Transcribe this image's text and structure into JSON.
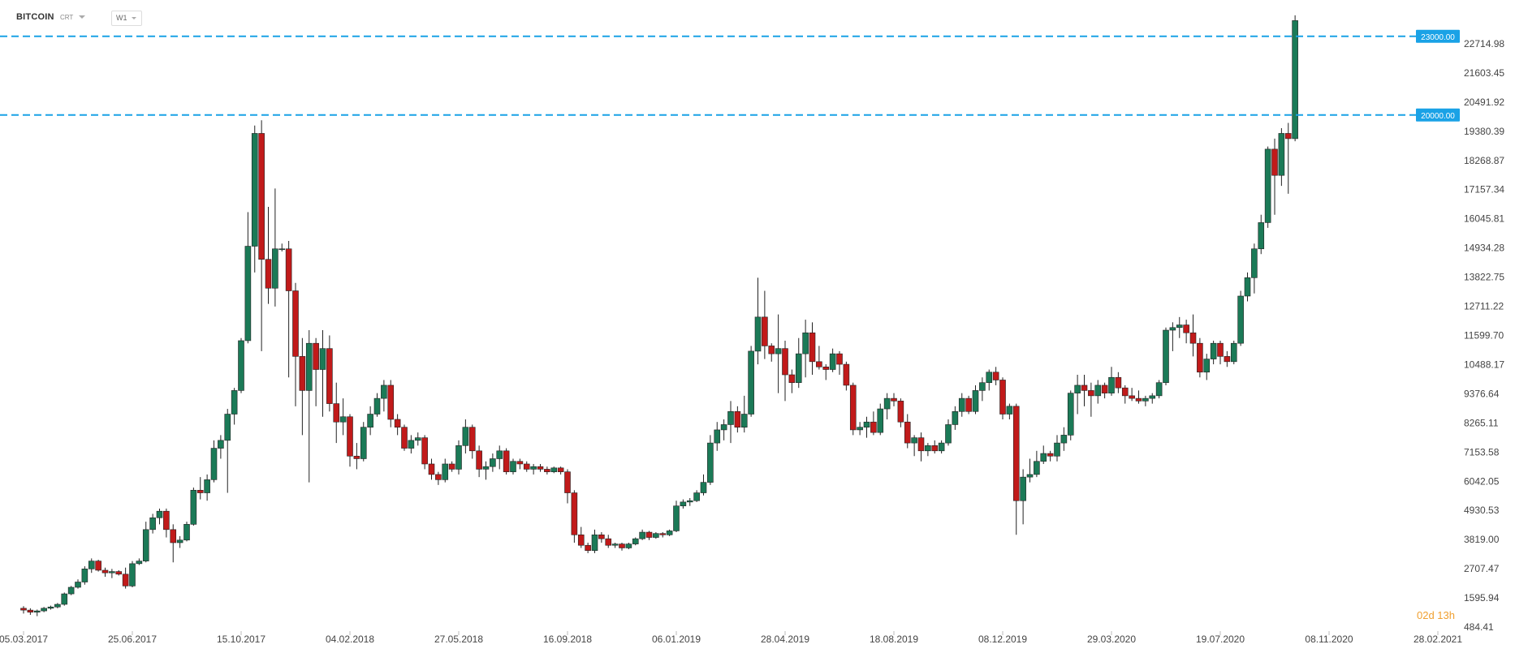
{
  "header": {
    "symbol": "BITCOIN",
    "subtype": "CRT",
    "timeframe": "W1"
  },
  "countdown": "02d 13h",
  "colors": {
    "up": "#1b7a57",
    "down": "#c11a1a",
    "level_line": "#1aa2e6",
    "level_badge": "#1aa2e6",
    "background": "#ffffff"
  },
  "chart_data": {
    "type": "candlestick",
    "title": "",
    "ylim": [
      484.41,
      24400
    ],
    "y_ticks": [
      "22714.98",
      "21603.45",
      "20491.92",
      "19380.39",
      "18268.87",
      "17157.34",
      "16045.81",
      "14934.28",
      "13822.75",
      "12711.22",
      "11599.70",
      "10488.17",
      "9376.64",
      "8265.11",
      "7153.58",
      "6042.05",
      "4930.53",
      "3819.00",
      "2707.47",
      "1595.94",
      "484.41"
    ],
    "x_ticks": [
      "05.03.2017",
      "25.06.2017",
      "15.10.2017",
      "04.02.2018",
      "27.05.2018",
      "16.09.2018",
      "06.01.2019",
      "28.04.2019",
      "18.08.2019",
      "08.12.2019",
      "29.03.2020",
      "19.07.2020",
      "08.11.2020",
      "28.02.2021"
    ],
    "x_start": "05.03.2017",
    "x_end": "28.02.2021",
    "levels": [
      {
        "value": 23000,
        "label": "23000.00"
      },
      {
        "value": 20000,
        "label": "20000.00"
      }
    ],
    "candles": [
      [
        1200,
        1280,
        1000,
        1130
      ],
      [
        1130,
        1200,
        950,
        1050
      ],
      [
        1050,
        1150,
        900,
        1100
      ],
      [
        1100,
        1250,
        1050,
        1200
      ],
      [
        1200,
        1300,
        1150,
        1250
      ],
      [
        1250,
        1400,
        1200,
        1350
      ],
      [
        1350,
        1800,
        1300,
        1750
      ],
      [
        1750,
        2050,
        1700,
        2000
      ],
      [
        2000,
        2300,
        1950,
        2200
      ],
      [
        2200,
        2800,
        2100,
        2700
      ],
      [
        2700,
        3100,
        2550,
        3000
      ],
      [
        3000,
        3050,
        2600,
        2650
      ],
      [
        2650,
        2750,
        2400,
        2550
      ],
      [
        2550,
        2700,
        2350,
        2600
      ],
      [
        2600,
        2650,
        2450,
        2500
      ],
      [
        2500,
        2750,
        1950,
        2050
      ],
      [
        2050,
        3000,
        2000,
        2900
      ],
      [
        2900,
        3100,
        2850,
        3000
      ],
      [
        3000,
        4500,
        2950,
        4200
      ],
      [
        4200,
        4800,
        4050,
        4650
      ],
      [
        4650,
        5000,
        4400,
        4900
      ],
      [
        4900,
        5000,
        3900,
        4200
      ],
      [
        4200,
        4400,
        2950,
        3700
      ],
      [
        3700,
        3950,
        3500,
        3800
      ],
      [
        3800,
        4500,
        3750,
        4400
      ],
      [
        4400,
        5800,
        4350,
        5700
      ],
      [
        5700,
        6200,
        5350,
        5600
      ],
      [
        5600,
        6300,
        5300,
        6100
      ],
      [
        6100,
        7600,
        6000,
        7300
      ],
      [
        7300,
        7800,
        6900,
        7600
      ],
      [
        7600,
        8800,
        5600,
        8600
      ],
      [
        8600,
        9600,
        8200,
        9500
      ],
      [
        9500,
        11500,
        9400,
        11400
      ],
      [
        11400,
        16300,
        11300,
        15000
      ],
      [
        15000,
        19600,
        14000,
        19300
      ],
      [
        19300,
        19800,
        11000,
        14500
      ],
      [
        14500,
        16500,
        12800,
        13400
      ],
      [
        13400,
        17200,
        12700,
        14900
      ],
      [
        14900,
        15100,
        14800,
        14900
      ],
      [
        14900,
        15200,
        10000,
        13300
      ],
      [
        13300,
        13600,
        8900,
        10800
      ],
      [
        10800,
        11500,
        7800,
        9500
      ],
      [
        9500,
        11800,
        6000,
        11300
      ],
      [
        11300,
        11500,
        8900,
        10300
      ],
      [
        10300,
        11800,
        8500,
        11100
      ],
      [
        11100,
        11600,
        8700,
        9000
      ],
      [
        9000,
        9800,
        7500,
        8300
      ],
      [
        8300,
        9200,
        7800,
        8500
      ],
      [
        8500,
        8600,
        6600,
        7000
      ],
      [
        7000,
        7500,
        6500,
        6900
      ],
      [
        6900,
        8300,
        6800,
        8100
      ],
      [
        8100,
        8900,
        7800,
        8600
      ],
      [
        8600,
        9400,
        8500,
        9200
      ],
      [
        9200,
        9900,
        8700,
        9700
      ],
      [
        9700,
        9900,
        8100,
        8400
      ],
      [
        8400,
        8600,
        7800,
        8100
      ],
      [
        8100,
        8200,
        7200,
        7300
      ],
      [
        7300,
        7800,
        7100,
        7600
      ],
      [
        7600,
        7900,
        7400,
        7700
      ],
      [
        7700,
        7800,
        6500,
        6700
      ],
      [
        6700,
        6900,
        6100,
        6300
      ],
      [
        6300,
        6400,
        5900,
        6100
      ],
      [
        6100,
        6900,
        6000,
        6700
      ],
      [
        6700,
        6800,
        6400,
        6500
      ],
      [
        6500,
        7600,
        6300,
        7400
      ],
      [
        7400,
        8400,
        7100,
        8100
      ],
      [
        8100,
        8200,
        6900,
        7200
      ],
      [
        7200,
        7400,
        6200,
        6500
      ],
      [
        6500,
        6800,
        6100,
        6600
      ],
      [
        6600,
        7100,
        6400,
        6900
      ],
      [
        6900,
        7400,
        6500,
        7200
      ],
      [
        7200,
        7300,
        6300,
        6400
      ],
      [
        6400,
        6900,
        6300,
        6800
      ],
      [
        6800,
        6900,
        6500,
        6700
      ],
      [
        6700,
        6800,
        6400,
        6500
      ],
      [
        6500,
        6700,
        6300,
        6600
      ],
      [
        6600,
        6700,
        6400,
        6500
      ],
      [
        6500,
        6600,
        6300,
        6400
      ],
      [
        6400,
        6600,
        6350,
        6550
      ],
      [
        6550,
        6600,
        6300,
        6400
      ],
      [
        6400,
        6500,
        5200,
        5600
      ],
      [
        5600,
        5700,
        3700,
        4000
      ],
      [
        4000,
        4300,
        3500,
        3600
      ],
      [
        3600,
        3700,
        3300,
        3400
      ],
      [
        3400,
        4200,
        3300,
        4000
      ],
      [
        4000,
        4100,
        3700,
        3850
      ],
      [
        3850,
        4000,
        3500,
        3600
      ],
      [
        3600,
        3700,
        3500,
        3650
      ],
      [
        3650,
        3700,
        3400,
        3500
      ],
      [
        3500,
        3700,
        3450,
        3650
      ],
      [
        3650,
        3900,
        3600,
        3850
      ],
      [
        3850,
        4200,
        3800,
        4100
      ],
      [
        4100,
        4150,
        3800,
        3900
      ],
      [
        3900,
        4100,
        3850,
        4050
      ],
      [
        4050,
        4100,
        3900,
        4000
      ],
      [
        4000,
        4200,
        3950,
        4150
      ],
      [
        4150,
        5300,
        4100,
        5100
      ],
      [
        5100,
        5350,
        5000,
        5250
      ],
      [
        5250,
        5400,
        5100,
        5300
      ],
      [
        5300,
        5700,
        5250,
        5600
      ],
      [
        5600,
        6300,
        5500,
        6000
      ],
      [
        6000,
        7800,
        5900,
        7500
      ],
      [
        7500,
        8300,
        7200,
        8000
      ],
      [
        8000,
        8400,
        7600,
        8200
      ],
      [
        8200,
        9100,
        7500,
        8700
      ],
      [
        8700,
        8900,
        7900,
        8100
      ],
      [
        8100,
        9300,
        7900,
        8600
      ],
      [
        8600,
        11200,
        8500,
        11000
      ],
      [
        11000,
        13800,
        10500,
        12300
      ],
      [
        12300,
        13300,
        10700,
        11200
      ],
      [
        11200,
        11300,
        10600,
        10900
      ],
      [
        10900,
        12400,
        9400,
        11100
      ],
      [
        11100,
        11400,
        9100,
        10100
      ],
      [
        10100,
        10300,
        9400,
        9800
      ],
      [
        9800,
        11500,
        9600,
        10900
      ],
      [
        10900,
        12200,
        10000,
        11700
      ],
      [
        11700,
        12100,
        10100,
        10600
      ],
      [
        10600,
        11200,
        10300,
        10400
      ],
      [
        10400,
        10500,
        9900,
        10300
      ],
      [
        10300,
        11100,
        10200,
        10900
      ],
      [
        10900,
        11000,
        10100,
        10500
      ],
      [
        10500,
        10600,
        9500,
        9700
      ],
      [
        9700,
        9800,
        7800,
        8000
      ],
      [
        8000,
        8300,
        7800,
        8100
      ],
      [
        8100,
        8500,
        7700,
        8300
      ],
      [
        8300,
        8700,
        7800,
        7900
      ],
      [
        7900,
        9000,
        7800,
        8800
      ],
      [
        8800,
        9400,
        8400,
        9200
      ],
      [
        9200,
        9400,
        8900,
        9100
      ],
      [
        9100,
        9200,
        8100,
        8300
      ],
      [
        8300,
        8600,
        7300,
        7500
      ],
      [
        7500,
        7800,
        7000,
        7700
      ],
      [
        7700,
        7900,
        6800,
        7200
      ],
      [
        7200,
        7500,
        7000,
        7400
      ],
      [
        7400,
        7600,
        7100,
        7200
      ],
      [
        7200,
        7600,
        7100,
        7500
      ],
      [
        7500,
        8400,
        7400,
        8200
      ],
      [
        8200,
        8900,
        8000,
        8700
      ],
      [
        8700,
        9400,
        8500,
        9200
      ],
      [
        9200,
        9300,
        8600,
        8700
      ],
      [
        8700,
        9700,
        8600,
        9500
      ],
      [
        9500,
        10000,
        9100,
        9800
      ],
      [
        9800,
        10300,
        9500,
        10200
      ],
      [
        10200,
        10400,
        9700,
        9900
      ],
      [
        9900,
        10000,
        8400,
        8600
      ],
      [
        8600,
        9000,
        8400,
        8900
      ],
      [
        8900,
        9000,
        4000,
        5300
      ],
      [
        5300,
        6500,
        4400,
        6200
      ],
      [
        6200,
        6900,
        6000,
        6300
      ],
      [
        6300,
        7200,
        6200,
        6800
      ],
      [
        6800,
        7400,
        6700,
        7100
      ],
      [
        7100,
        7200,
        6800,
        7000
      ],
      [
        7000,
        7800,
        6800,
        7500
      ],
      [
        7500,
        8100,
        7200,
        7800
      ],
      [
        7800,
        9500,
        7600,
        9400
      ],
      [
        9400,
        10100,
        8600,
        9700
      ],
      [
        9700,
        10100,
        8900,
        9500
      ],
      [
        9500,
        9800,
        8500,
        9300
      ],
      [
        9300,
        9900,
        9000,
        9700
      ],
      [
        9700,
        9800,
        9200,
        9400
      ],
      [
        9400,
        10400,
        9300,
        10000
      ],
      [
        10000,
        10200,
        9400,
        9600
      ],
      [
        9600,
        9700,
        9000,
        9300
      ],
      [
        9300,
        9600,
        9100,
        9200
      ],
      [
        9200,
        9500,
        9000,
        9100
      ],
      [
        9100,
        9300,
        8900,
        9200
      ],
      [
        9200,
        9400,
        9000,
        9300
      ],
      [
        9300,
        9900,
        9200,
        9800
      ],
      [
        9800,
        11900,
        9700,
        11800
      ],
      [
        11800,
        12100,
        11000,
        11900
      ],
      [
        11900,
        12300,
        11500,
        12000
      ],
      [
        12000,
        12200,
        11300,
        11700
      ],
      [
        11700,
        12400,
        10800,
        11300
      ],
      [
        11300,
        11500,
        10000,
        10200
      ],
      [
        10200,
        10900,
        9900,
        10700
      ],
      [
        10700,
        11400,
        10500,
        11300
      ],
      [
        11300,
        11400,
        10500,
        10800
      ],
      [
        10800,
        11000,
        10400,
        10600
      ],
      [
        10600,
        11400,
        10500,
        11300
      ],
      [
        11300,
        13300,
        11200,
        13100
      ],
      [
        13100,
        14000,
        12900,
        13800
      ],
      [
        13800,
        15100,
        13200,
        14900
      ],
      [
        14900,
        16200,
        14700,
        15900
      ],
      [
        15900,
        18800,
        15700,
        18700
      ],
      [
        18700,
        19100,
        16200,
        17700
      ],
      [
        17700,
        19500,
        17300,
        19300
      ],
      [
        19300,
        19700,
        17000,
        19100
      ],
      [
        19100,
        23800,
        19000,
        23600
      ]
    ]
  }
}
